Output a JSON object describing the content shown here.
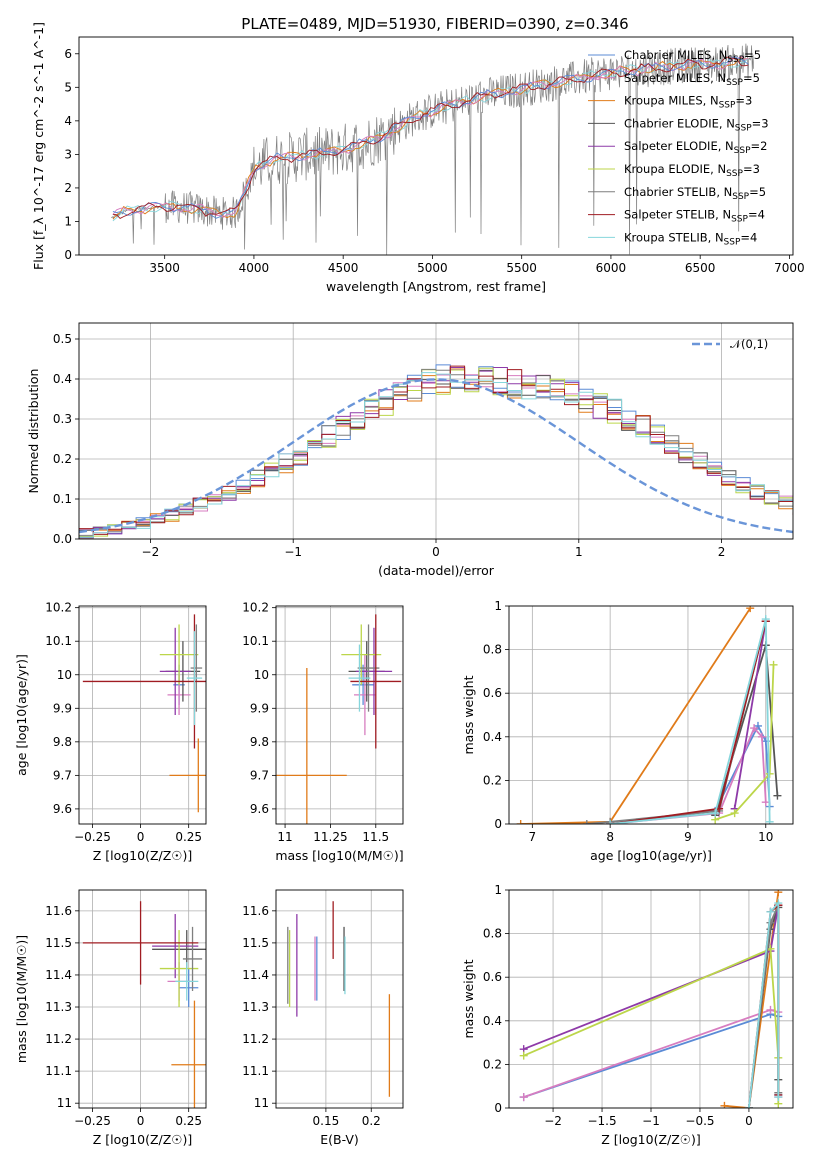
{
  "figure": {
    "title": "PLATE=0489, MJD=51930, FIBERID=0390, z=0.346"
  },
  "models": [
    {
      "name": "Chabrier MILES",
      "nssp": "5",
      "color": "#5b8bd6"
    },
    {
      "name": "Salpeter MILES",
      "nssp": "5",
      "color": "#d77dc0"
    },
    {
      "name": "Kroupa MILES",
      "nssp": "3",
      "color": "#e07b1a"
    },
    {
      "name": "Chabrier ELODIE",
      "nssp": "3",
      "color": "#555555"
    },
    {
      "name": "Salpeter ELODIE",
      "nssp": "2",
      "color": "#8e3aa8"
    },
    {
      "name": "Kroupa ELODIE",
      "nssp": "3",
      "color": "#bcd64a"
    },
    {
      "name": "Chabrier STELIB",
      "nssp": "5",
      "color": "#7f7f7f"
    },
    {
      "name": "Salpeter STELIB",
      "nssp": "4",
      "color": "#a01c22"
    },
    {
      "name": "Kroupa STELIB",
      "nssp": "4",
      "color": "#86d6dc"
    }
  ],
  "chart_data": [
    {
      "id": "spectrum",
      "type": "line",
      "xlabel": "wavelength [Angstrom, rest frame]",
      "ylabel": "Flux [f_λ 10^-17 erg cm^-2 s^-1 A^-1]",
      "xlim": [
        3020,
        7020
      ],
      "ylim": [
        0,
        6.5
      ],
      "xticks": [
        3500,
        4000,
        4500,
        5000,
        5500,
        6000,
        6500,
        7000
      ],
      "yticks": [
        0,
        1,
        2,
        3,
        4,
        5,
        6
      ],
      "legend_position": "top-right",
      "continuum_x": [
        3200,
        3300,
        3400,
        3500,
        3600,
        3700,
        3800,
        3900,
        4000,
        4100,
        4200,
        4300,
        4400,
        4500,
        4600,
        4700,
        4800,
        4900,
        5000,
        5100,
        5200,
        5300,
        5400,
        5500,
        5600,
        5700,
        5800,
        5900,
        6000,
        6100,
        6200,
        6300,
        6400,
        6500,
        6600,
        6700,
        6800
      ],
      "continuum_y": [
        1.1,
        1.35,
        1.4,
        1.45,
        1.42,
        1.35,
        1.25,
        1.25,
        2.55,
        2.85,
        2.9,
        3.0,
        3.05,
        3.15,
        3.3,
        3.5,
        3.8,
        4.1,
        4.3,
        4.45,
        4.6,
        4.75,
        4.85,
        4.95,
        5.05,
        5.15,
        5.25,
        5.35,
        5.45,
        5.5,
        5.55,
        5.6,
        5.65,
        5.7,
        5.7,
        5.75,
        5.8
      ]
    },
    {
      "id": "residuals",
      "type": "area",
      "xlabel": "(data-model)/error",
      "ylabel": "Normed distribution",
      "xlim": [
        -2.5,
        2.5
      ],
      "ylim": [
        0,
        0.54
      ],
      "xticks": [
        -2,
        -1,
        0,
        1,
        2
      ],
      "yticks": [
        0.0,
        0.1,
        0.2,
        0.3,
        0.4,
        0.5
      ],
      "legend_position": "top-right",
      "reference": {
        "label": "𝒩(0,1)",
        "mean": 0,
        "sigma": 1,
        "color": "#6a95d8"
      },
      "bin_width": 0.1,
      "bins_from": -2.5,
      "hist_base": [
        0.016,
        0.02,
        0.024,
        0.032,
        0.04,
        0.05,
        0.06,
        0.072,
        0.086,
        0.1,
        0.116,
        0.132,
        0.15,
        0.17,
        0.19,
        0.21,
        0.232,
        0.256,
        0.278,
        0.3,
        0.32,
        0.34,
        0.36,
        0.375,
        0.39,
        0.4,
        0.41,
        0.405,
        0.4,
        0.395,
        0.39,
        0.385,
        0.38,
        0.37,
        0.36,
        0.35,
        0.335,
        0.32,
        0.3,
        0.28,
        0.258,
        0.236,
        0.214,
        0.192,
        0.17,
        0.152,
        0.134,
        0.118,
        0.104,
        0.09,
        0.078,
        0.066,
        0.056,
        0.046,
        0.038,
        0.032,
        0.026,
        0.022,
        0.018,
        0.014
      ]
    },
    {
      "id": "age_vs_Z",
      "type": "scatter",
      "xlabel": "Z [log10(Z/Z☉)]",
      "ylabel": "age  [log10(age/yr)]",
      "xlim": [
        -0.32,
        0.34
      ],
      "ylim": [
        9.555,
        10.205
      ],
      "xticks": [
        -0.25,
        0.0,
        0.25
      ],
      "yticks": [
        9.6,
        9.7,
        9.8,
        9.9,
        10.0,
        10.1,
        10.2
      ],
      "points": [
        {
          "m": 0,
          "x": 0.2,
          "xe": 0.03,
          "y": 9.97,
          "ye": 0.06
        },
        {
          "m": 1,
          "x": 0.2,
          "xe": 0.06,
          "y": 9.94,
          "ye": 0.06
        },
        {
          "m": 2,
          "x": 0.3,
          "xe": 0.15,
          "y": 9.7,
          "ye": 0.11
        },
        {
          "m": 3,
          "x": 0.22,
          "xe": 0.09,
          "y": 10.01,
          "ye": 0.09
        },
        {
          "m": 4,
          "x": 0.18,
          "xe": 0.08,
          "y": 10.01,
          "ye": 0.13
        },
        {
          "m": 5,
          "x": 0.2,
          "xe": 0.1,
          "y": 10.06,
          "ye": 0.09
        },
        {
          "m": 6,
          "x": 0.29,
          "xe": 0.03,
          "y": 10.02,
          "ye": 0.13
        },
        {
          "m": 7,
          "x": 0.28,
          "xe": 0.58,
          "y": 9.98,
          "ye": 0.2
        },
        {
          "m": 8,
          "x": 0.28,
          "xe": 0.04,
          "y": 9.99,
          "ye": 0.14
        }
      ]
    },
    {
      "id": "age_vs_mass",
      "type": "scatter",
      "xlabel": "mass [log10(M/M☉)]",
      "ylabel": "",
      "xlim": [
        10.95,
        11.65
      ],
      "ylim": [
        9.555,
        10.205
      ],
      "xticks": [
        11.0,
        11.25,
        11.5
      ],
      "yticks": [
        9.6,
        9.7,
        9.8,
        9.9,
        10.0,
        10.1,
        10.2
      ],
      "points": [
        {
          "m": 0,
          "x": 11.43,
          "xe": 0.06,
          "y": 9.97,
          "ye": 0.06
        },
        {
          "m": 1,
          "x": 11.44,
          "xe": 0.06,
          "y": 9.94,
          "ye": 0.12
        },
        {
          "m": 2,
          "x": 11.12,
          "xe": 0.22,
          "y": 9.7,
          "ye": 0.32
        },
        {
          "m": 3,
          "x": 11.45,
          "xe": 0.1,
          "y": 10.01,
          "ye": 0.09
        },
        {
          "m": 4,
          "x": 11.49,
          "xe": 0.1,
          "y": 10.01,
          "ye": 0.13
        },
        {
          "m": 5,
          "x": 11.42,
          "xe": 0.11,
          "y": 10.06,
          "ye": 0.09
        },
        {
          "m": 6,
          "x": 11.46,
          "xe": 0.06,
          "y": 10.02,
          "ye": 0.13
        },
        {
          "m": 7,
          "x": 11.5,
          "xe": 0.14,
          "y": 9.98,
          "ye": 0.2
        },
        {
          "m": 8,
          "x": 11.41,
          "xe": 0.06,
          "y": 9.99,
          "ye": 0.1
        }
      ]
    },
    {
      "id": "weight_vs_age",
      "type": "line",
      "xlabel": "age  [log10(age/yr)]",
      "ylabel": "mass weight",
      "xlim": [
        6.7,
        10.35
      ],
      "ylim": [
        0,
        1
      ],
      "xticks": [
        7,
        8,
        9,
        10
      ],
      "yticks": [
        0.0,
        0.2,
        0.4,
        0.6,
        0.8,
        1.0
      ],
      "series": [
        {
          "m": 0,
          "x": [
            8.0,
            9.35,
            9.9,
            10.0,
            10.05
          ],
          "y": [
            0.0,
            0.06,
            0.45,
            0.38,
            0.08
          ]
        },
        {
          "m": 1,
          "x": [
            8.0,
            9.4,
            9.85,
            9.95,
            10.0
          ],
          "y": [
            0.0,
            0.05,
            0.44,
            0.4,
            0.1
          ]
        },
        {
          "m": 2,
          "x": [
            6.85,
            8.0,
            9.8
          ],
          "y": [
            0.0,
            0.01,
            0.99
          ]
        },
        {
          "m": 3,
          "x": [
            9.35,
            10.0,
            10.15
          ],
          "y": [
            0.04,
            0.82,
            0.13
          ]
        },
        {
          "m": 4,
          "x": [
            9.6,
            10.0
          ],
          "y": [
            0.07,
            0.93
          ]
        },
        {
          "m": 5,
          "x": [
            9.35,
            9.6,
            10.05,
            10.1
          ],
          "y": [
            0.02,
            0.05,
            0.23,
            0.73
          ]
        },
        {
          "m": 6,
          "x": [
            7.7,
            8.0,
            9.4,
            10.0
          ],
          "y": [
            0.0,
            0.01,
            0.06,
            0.93
          ]
        },
        {
          "m": 7,
          "x": [
            8.0,
            9.4,
            10.0
          ],
          "y": [
            0.0,
            0.07,
            0.93
          ]
        },
        {
          "m": 8,
          "x": [
            8.0,
            9.35,
            10.0,
            10.05
          ],
          "y": [
            0.0,
            0.05,
            0.94,
            0.01
          ]
        }
      ]
    },
    {
      "id": "mass_vs_Z",
      "type": "scatter",
      "xlabel": "Z [log10(Z/Z☉)]",
      "ylabel": "mass [log10(M/M☉)]",
      "xlim": [
        -0.32,
        0.34
      ],
      "ylim": [
        10.985,
        11.665
      ],
      "xticks": [
        -0.25,
        0.0,
        0.25
      ],
      "yticks": [
        11.0,
        11.1,
        11.2,
        11.3,
        11.4,
        11.5,
        11.6
      ],
      "points": [
        {
          "m": 0,
          "x": 0.25,
          "xe": 0.05,
          "y": 11.36,
          "ye": 0.06
        },
        {
          "m": 1,
          "x": 0.2,
          "xe": 0.06,
          "y": 11.38,
          "ye": 0.06
        },
        {
          "m": 2,
          "x": 0.28,
          "xe": 0.12,
          "y": 11.12,
          "ye": 0.2
        },
        {
          "m": 3,
          "x": 0.24,
          "xe": 0.18,
          "y": 11.48,
          "ye": 0.06
        },
        {
          "m": 4,
          "x": 0.18,
          "xe": 0.12,
          "y": 11.49,
          "ye": 0.1
        },
        {
          "m": 5,
          "x": 0.2,
          "xe": 0.1,
          "y": 11.42,
          "ye": 0.12
        },
        {
          "m": 6,
          "x": 0.27,
          "xe": 0.05,
          "y": 11.45,
          "ye": 0.1
        },
        {
          "m": 7,
          "x": 0.0,
          "xe": 0.3,
          "y": 11.5,
          "ye": 0.13
        },
        {
          "m": 8,
          "x": 0.24,
          "xe": 0.06,
          "y": 11.38,
          "ye": 0.06
        }
      ]
    },
    {
      "id": "mass_vs_ebv",
      "type": "scatter",
      "xlabel": "E(B-V)",
      "ylabel": "",
      "xlim": [
        0.095,
        0.235
      ],
      "ylim": [
        10.985,
        11.665
      ],
      "xticks": [
        0.15,
        0.2
      ],
      "yticks": [
        11.0,
        11.1,
        11.2,
        11.3,
        11.4,
        11.5,
        11.6
      ],
      "points": [
        {
          "m": 0,
          "x": 0.14,
          "y": 11.42,
          "ye": 0.1
        },
        {
          "m": 1,
          "x": 0.138,
          "y": 11.42,
          "ye": 0.1
        },
        {
          "m": 2,
          "x": 0.22,
          "y": 11.18,
          "ye": 0.16
        },
        {
          "m": 3,
          "x": 0.17,
          "y": 11.45,
          "ye": 0.1
        },
        {
          "m": 4,
          "x": 0.118,
          "y": 11.43,
          "ye": 0.16
        },
        {
          "m": 5,
          "x": 0.11,
          "y": 11.42,
          "ye": 0.12
        },
        {
          "m": 6,
          "x": 0.108,
          "y": 11.43,
          "ye": 0.12
        },
        {
          "m": 7,
          "x": 0.158,
          "y": 11.54,
          "ye": 0.09
        },
        {
          "m": 8,
          "x": 0.171,
          "y": 11.43,
          "ye": 0.09
        }
      ]
    },
    {
      "id": "weight_vs_Z",
      "type": "line",
      "xlabel": "Z [log10(Z/Z☉)]",
      "ylabel": "mass weight",
      "xlim": [
        -2.45,
        0.45
      ],
      "ylim": [
        0,
        1
      ],
      "xticks": [
        -2.0,
        -1.5,
        -1.0,
        -0.5,
        0.0
      ],
      "yticks": [
        0.0,
        0.2,
        0.4,
        0.6,
        0.8,
        1.0
      ],
      "series": [
        {
          "m": 0,
          "x": [
            -2.3,
            0.22,
            0.3,
            0.3
          ],
          "y": [
            0.05,
            0.43,
            0.42,
            0.06
          ]
        },
        {
          "m": 1,
          "x": [
            -2.3,
            0.22,
            0.3,
            0.3
          ],
          "y": [
            0.05,
            0.45,
            0.44,
            0.05
          ]
        },
        {
          "m": 2,
          "x": [
            -0.25,
            0.0,
            0.3
          ],
          "y": [
            0.01,
            0.0,
            0.99
          ]
        },
        {
          "m": 3,
          "x": [
            0.0,
            0.22,
            0.3,
            0.3
          ],
          "y": [
            0.0,
            0.82,
            0.92,
            0.13
          ]
        },
        {
          "m": 4,
          "x": [
            -2.3,
            0.22,
            0.3
          ],
          "y": [
            0.27,
            0.72,
            0.93
          ]
        },
        {
          "m": 5,
          "x": [
            -2.3,
            0.22,
            0.3,
            0.3
          ],
          "y": [
            0.24,
            0.73,
            0.23,
            0.02
          ]
        },
        {
          "m": 6,
          "x": [
            0.0,
            0.22,
            0.3,
            0.3
          ],
          "y": [
            0.0,
            0.85,
            0.93,
            0.07
          ]
        },
        {
          "m": 7,
          "x": [
            0.0,
            0.22,
            0.3,
            0.3
          ],
          "y": [
            0.0,
            0.9,
            0.93,
            0.06
          ]
        },
        {
          "m": 8,
          "x": [
            0.0,
            0.22,
            0.3,
            0.3
          ],
          "y": [
            0.0,
            0.9,
            0.94,
            0.05
          ]
        }
      ]
    }
  ]
}
